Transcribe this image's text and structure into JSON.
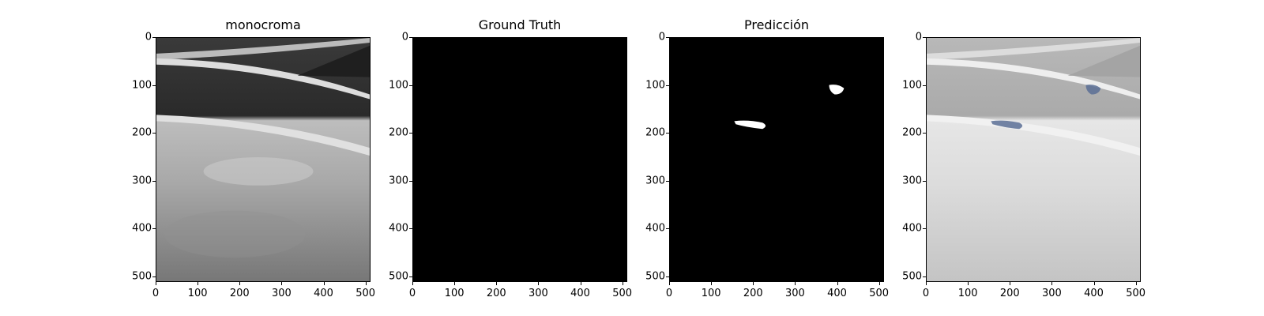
{
  "panels": [
    {
      "title": "monocroma"
    },
    {
      "title": "Ground Truth"
    },
    {
      "title": "Predicción"
    },
    {
      "title": ""
    }
  ],
  "axes": {
    "y_ticks": [
      "0",
      "100",
      "200",
      "300",
      "400",
      "500"
    ],
    "x_ticks": [
      "0",
      "100",
      "200",
      "300",
      "400",
      "500"
    ]
  },
  "colors": {
    "mask_background": "#000000",
    "mask_foreground": "#ffffff",
    "overlay_region": "#5a6f95"
  }
}
